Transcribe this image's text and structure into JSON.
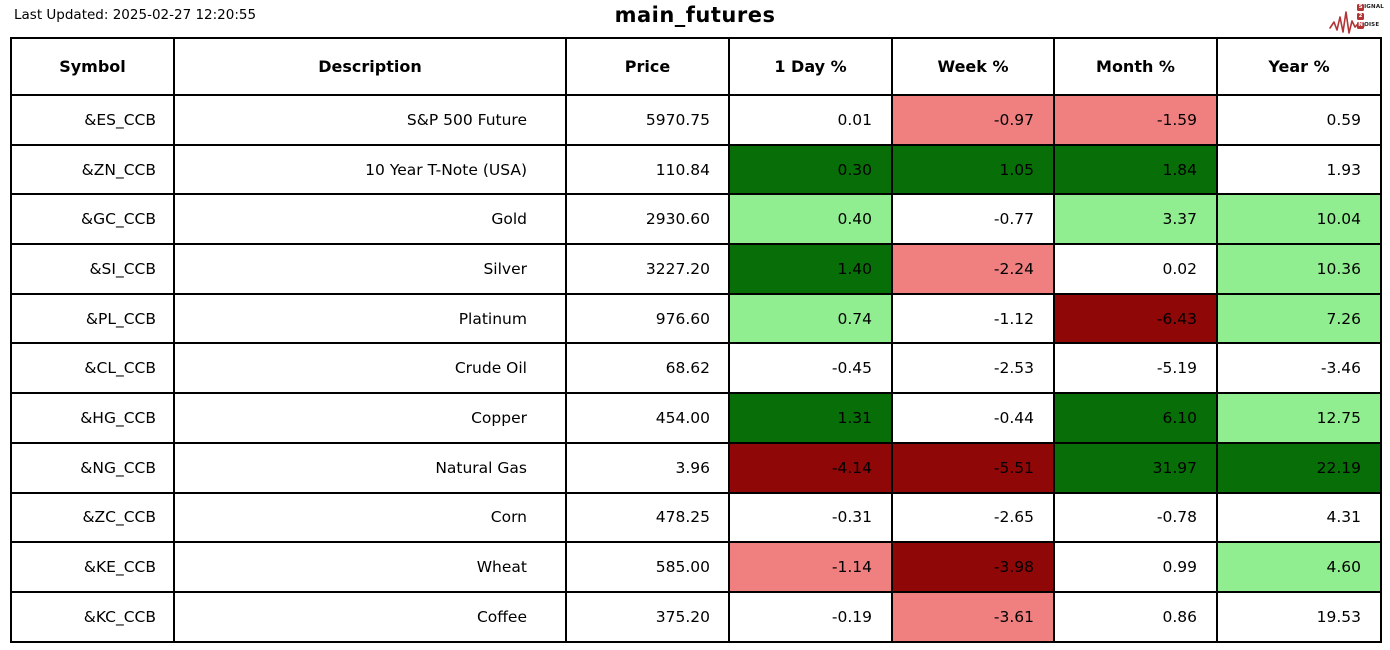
{
  "header": {
    "last_updated": "Last Updated: 2025-02-27 12:20:55",
    "title": "main_futures",
    "logo": {
      "line1_initial": "S",
      "line1_rest": "IGNAL",
      "line2_initial": "2",
      "line3_initial": "N",
      "line3_rest": "OISE",
      "color": "#b23434"
    }
  },
  "table": {
    "columns": [
      "Symbol",
      "Description",
      "Price",
      "1 Day %",
      "Week %",
      "Month %",
      "Year %"
    ],
    "colors": {
      "neutral": "#ffffff",
      "up": "#90ee90",
      "up_strong": "#086e08",
      "down": "#f08080",
      "down_strong": "#8f0707"
    },
    "rows": [
      {
        "symbol": "&ES_CCB",
        "description": "S&P 500 Future",
        "price": "5970.75",
        "day": "0.01",
        "week": "-0.97",
        "month": "-1.59",
        "year": "0.59",
        "bg": {
          "day": "neutral",
          "week": "down",
          "month": "down",
          "year": "neutral"
        }
      },
      {
        "symbol": "&ZN_CCB",
        "description": "10 Year T-Note (USA)",
        "price": "110.84",
        "day": "0.30",
        "week": "1.05",
        "month": "1.84",
        "year": "1.93",
        "bg": {
          "day": "up_strong",
          "week": "up_strong",
          "month": "up_strong",
          "year": "neutral"
        }
      },
      {
        "symbol": "&GC_CCB",
        "description": "Gold",
        "price": "2930.60",
        "day": "0.40",
        "week": "-0.77",
        "month": "3.37",
        "year": "10.04",
        "bg": {
          "day": "up",
          "week": "neutral",
          "month": "up",
          "year": "up"
        }
      },
      {
        "symbol": "&SI_CCB",
        "description": "Silver",
        "price": "3227.20",
        "day": "1.40",
        "week": "-2.24",
        "month": "0.02",
        "year": "10.36",
        "bg": {
          "day": "up_strong",
          "week": "down",
          "month": "neutral",
          "year": "up"
        }
      },
      {
        "symbol": "&PL_CCB",
        "description": "Platinum",
        "price": "976.60",
        "day": "0.74",
        "week": "-1.12",
        "month": "-6.43",
        "year": "7.26",
        "bg": {
          "day": "up",
          "week": "neutral",
          "month": "down_strong",
          "year": "up"
        }
      },
      {
        "symbol": "&CL_CCB",
        "description": "Crude Oil",
        "price": "68.62",
        "day": "-0.45",
        "week": "-2.53",
        "month": "-5.19",
        "year": "-3.46",
        "bg": {
          "day": "neutral",
          "week": "neutral",
          "month": "neutral",
          "year": "neutral"
        }
      },
      {
        "symbol": "&HG_CCB",
        "description": "Copper",
        "price": "454.00",
        "day": "1.31",
        "week": "-0.44",
        "month": "6.10",
        "year": "12.75",
        "bg": {
          "day": "up_strong",
          "week": "neutral",
          "month": "up_strong",
          "year": "up"
        }
      },
      {
        "symbol": "&NG_CCB",
        "description": "Natural Gas",
        "price": "3.96",
        "day": "-4.14",
        "week": "-5.51",
        "month": "31.97",
        "year": "22.19",
        "bg": {
          "day": "down_strong",
          "week": "down_strong",
          "month": "up_strong",
          "year": "up_strong"
        }
      },
      {
        "symbol": "&ZC_CCB",
        "description": "Corn",
        "price": "478.25",
        "day": "-0.31",
        "week": "-2.65",
        "month": "-0.78",
        "year": "4.31",
        "bg": {
          "day": "neutral",
          "week": "neutral",
          "month": "neutral",
          "year": "neutral"
        }
      },
      {
        "symbol": "&KE_CCB",
        "description": "Wheat",
        "price": "585.00",
        "day": "-1.14",
        "week": "-3.98",
        "month": "0.99",
        "year": "4.60",
        "bg": {
          "day": "down",
          "week": "down_strong",
          "month": "neutral",
          "year": "up"
        }
      },
      {
        "symbol": "&KC_CCB",
        "description": "Coffee",
        "price": "375.20",
        "day": "-0.19",
        "week": "-3.61",
        "month": "0.86",
        "year": "19.53",
        "bg": {
          "day": "neutral",
          "week": "down",
          "month": "neutral",
          "year": "neutral"
        }
      }
    ]
  },
  "chart_data": {
    "type": "table",
    "title": "main_futures",
    "last_updated": "2025-02-27 12:20:55",
    "columns": [
      "Symbol",
      "Description",
      "Price",
      "1 Day %",
      "Week %",
      "Month %",
      "Year %"
    ],
    "rows": [
      [
        "&ES_CCB",
        "S&P 500 Future",
        5970.75,
        0.01,
        -0.97,
        -1.59,
        0.59
      ],
      [
        "&ZN_CCB",
        "10 Year T-Note (USA)",
        110.84,
        0.3,
        1.05,
        1.84,
        1.93
      ],
      [
        "&GC_CCB",
        "Gold",
        2930.6,
        0.4,
        -0.77,
        3.37,
        10.04
      ],
      [
        "&SI_CCB",
        "Silver",
        3227.2,
        1.4,
        -2.24,
        0.02,
        10.36
      ],
      [
        "&PL_CCB",
        "Platinum",
        976.6,
        0.74,
        -1.12,
        -6.43,
        7.26
      ],
      [
        "&CL_CCB",
        "Crude Oil",
        68.62,
        -0.45,
        -2.53,
        -5.19,
        -3.46
      ],
      [
        "&HG_CCB",
        "Copper",
        454.0,
        1.31,
        -0.44,
        6.1,
        12.75
      ],
      [
        "&NG_CCB",
        "Natural Gas",
        3.96,
        -4.14,
        -5.51,
        31.97,
        22.19
      ],
      [
        "&ZC_CCB",
        "Corn",
        478.25,
        -0.31,
        -2.65,
        -0.78,
        4.31
      ],
      [
        "&KE_CCB",
        "Wheat",
        585.0,
        -1.14,
        -3.98,
        0.99,
        4.6
      ],
      [
        "&KC_CCB",
        "Coffee",
        375.2,
        -0.19,
        -3.61,
        0.86,
        19.53
      ]
    ],
    "cell_highlight_legend": {
      "dark_green": "strong gain",
      "light_green": "gain",
      "white": "flat/unhighlighted",
      "light_red": "loss",
      "dark_red": "strong loss"
    }
  }
}
